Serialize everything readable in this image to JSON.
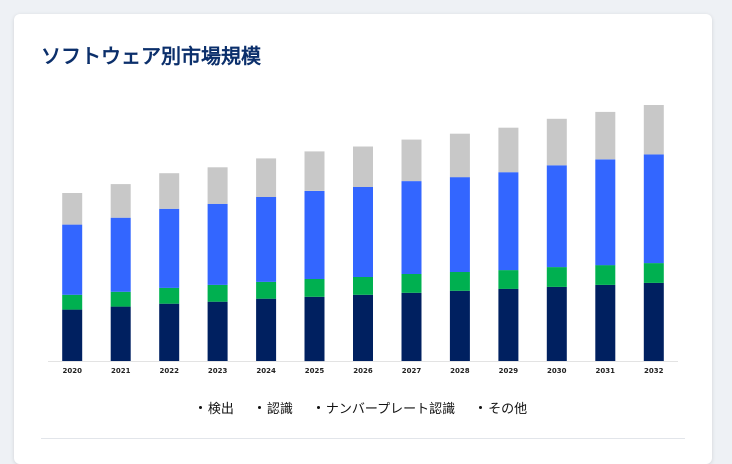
{
  "card": {
    "title": "ソフトウェア別市場規模"
  },
  "chart_data": {
    "type": "bar",
    "stacked": true,
    "title": "ソフトウェア別市場規模",
    "xlabel": "",
    "ylabel": "",
    "grid": false,
    "legend_position": "bottom",
    "categories": [
      "2020",
      "2021",
      "2022",
      "2023",
      "2024",
      "2025",
      "2026",
      "2027",
      "2028",
      "2029",
      "2030",
      "2031",
      "2032"
    ],
    "ylim": [
      0,
      260
    ],
    "series": [
      {
        "name": "検出",
        "color": "#002060",
        "values": [
          52,
          55,
          58,
          60,
          63,
          65,
          67,
          69,
          71,
          73,
          75,
          77,
          79
        ]
      },
      {
        "name": "認識",
        "color": "#00b050",
        "values": [
          15,
          15,
          16,
          17,
          17,
          18,
          18,
          19,
          19,
          19,
          20,
          20,
          20
        ]
      },
      {
        "name": "ナンバープレート認識",
        "color": "#3366ff",
        "values": [
          71,
          75,
          80,
          82,
          86,
          89,
          91,
          94,
          96,
          99,
          103,
          107,
          110
        ]
      },
      {
        "name": "その他",
        "color": "#c8c8c8",
        "values": [
          32,
          34,
          36,
          37,
          39,
          40,
          41,
          42,
          44,
          45,
          47,
          48,
          50
        ]
      }
    ]
  }
}
